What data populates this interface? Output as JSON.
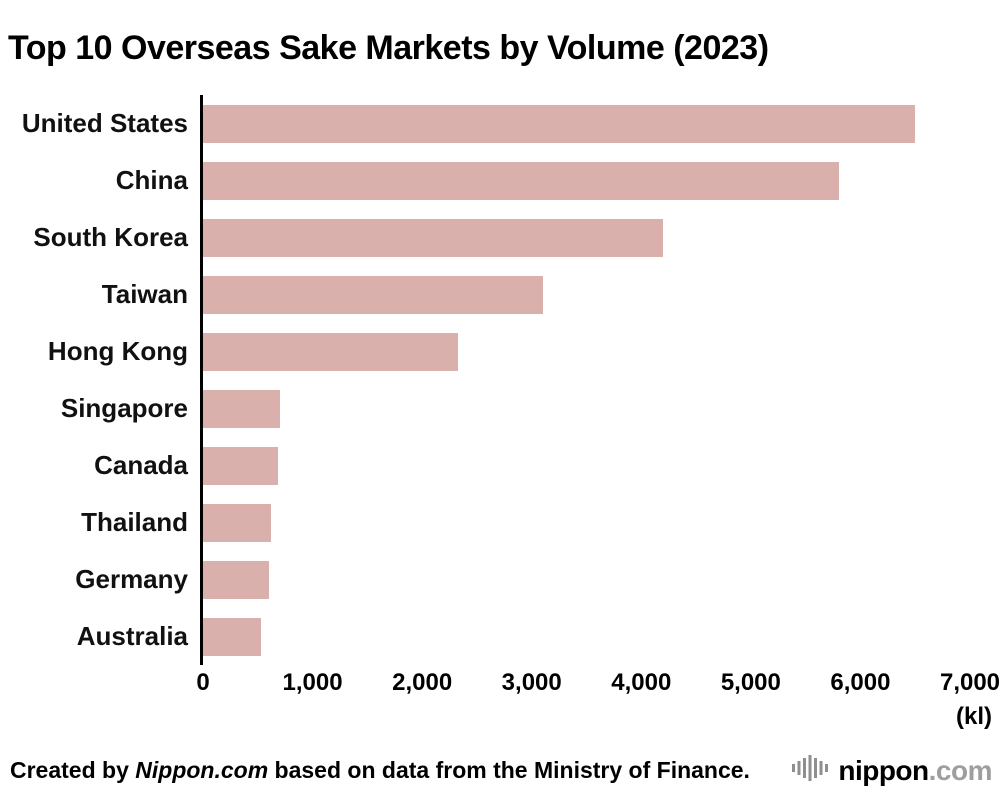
{
  "title": "Top 10 Overseas Sake Markets by Volume (2023)",
  "chart_data": {
    "type": "bar",
    "orientation": "horizontal",
    "title": "Top 10 Overseas Sake Markets by Volume (2023)",
    "categories": [
      "United States",
      "China",
      "South Korea",
      "Taiwan",
      "Hong Kong",
      "Singapore",
      "Canada",
      "Thailand",
      "Germany",
      "Australia"
    ],
    "values": [
      6500,
      5800,
      4200,
      3100,
      2330,
      700,
      680,
      620,
      600,
      530
    ],
    "xlim": [
      0,
      7000
    ],
    "xticks": [
      "0",
      "1,000",
      "2,000",
      "3,000",
      "4,000",
      "5,000",
      "6,000",
      "7,000"
    ],
    "unit_label": "(kl)",
    "xlabel": "(kl)",
    "ylabel": "",
    "grid": "off",
    "legend": "none",
    "bar_color": "#d9b0ab",
    "axis_color": "#000000"
  },
  "footer": {
    "credit_prefix": "Created by ",
    "credit_source": "Nippon.com",
    "credit_suffix": " based on data from the Ministry of Finance.",
    "logo_icon": "waveform-icon",
    "logo_name": "nippon",
    "logo_com": ".com"
  }
}
